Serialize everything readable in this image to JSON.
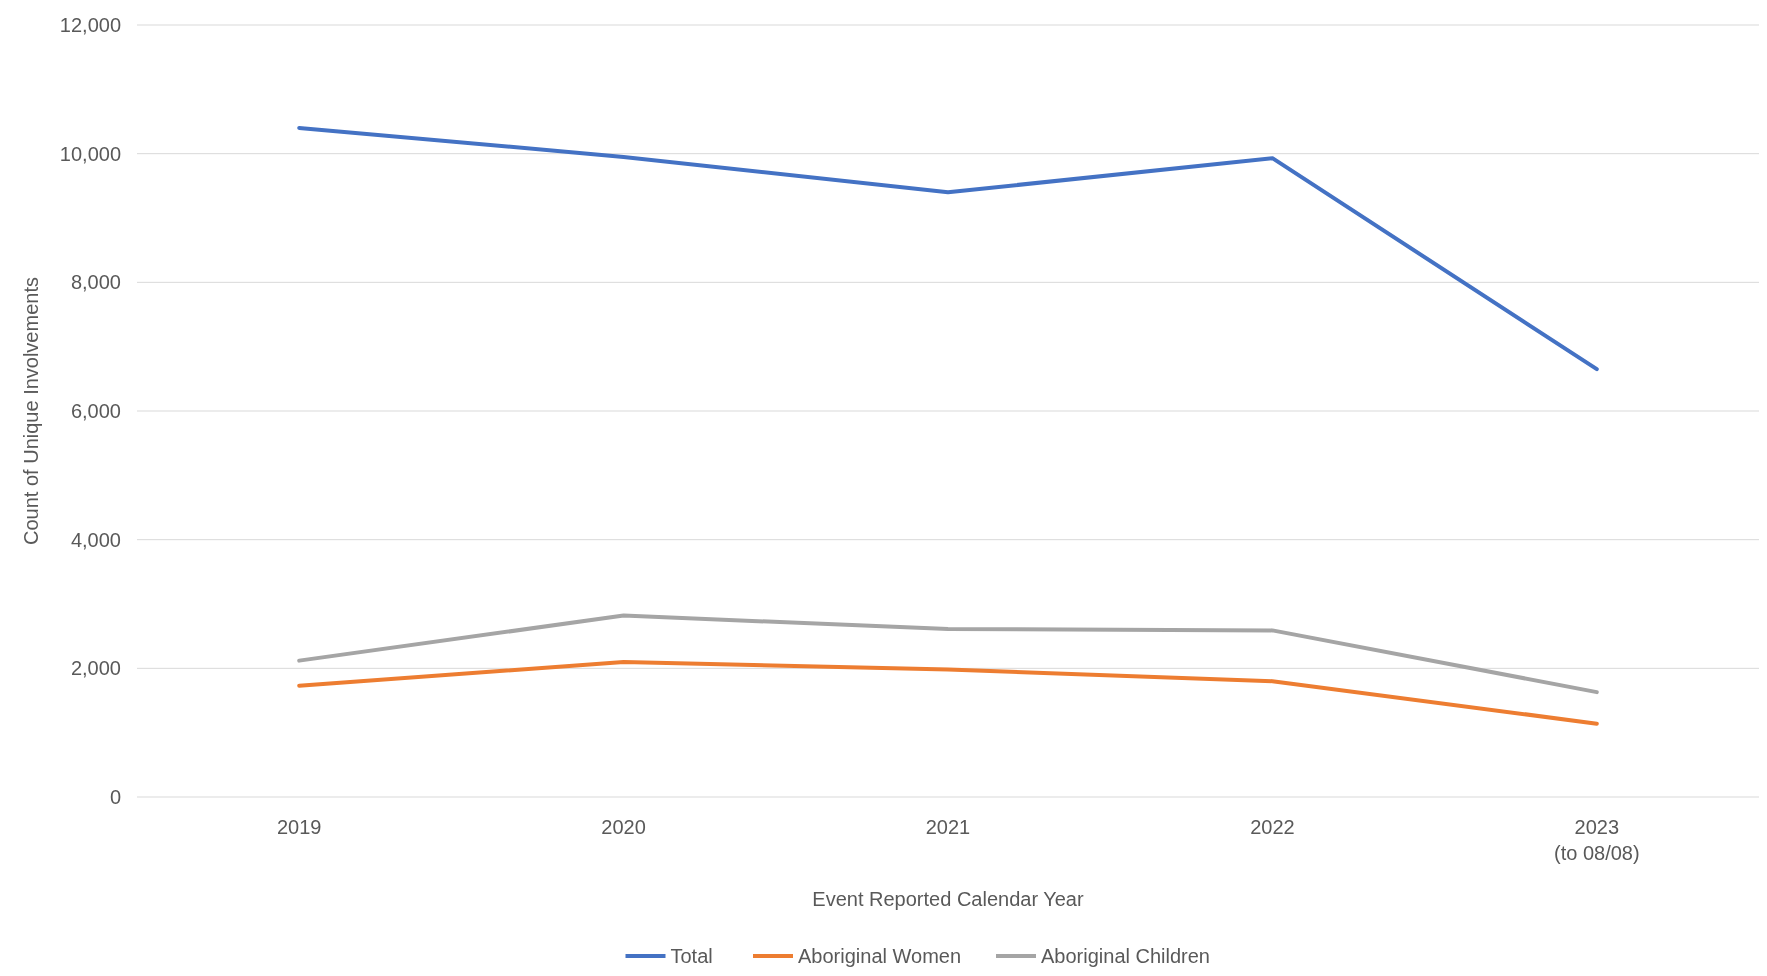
{
  "chart_data": {
    "type": "line",
    "xlabel": "Event Reported Calendar Year",
    "ylabel": "Count of Unique Involvements",
    "categories": [
      "2019",
      "2020",
      "2021",
      "2022",
      "2023\n(to 08/08)"
    ],
    "series": [
      {
        "name": "Total",
        "color": "#4472c4",
        "values": [
          10400,
          9950,
          9400,
          9930,
          6650
        ]
      },
      {
        "name": "Aboriginal Women",
        "color": "#ed7d31",
        "values": [
          1730,
          2100,
          1980,
          1800,
          1140
        ]
      },
      {
        "name": "Aboriginal Children",
        "color": "#a5a5a5",
        "values": [
          2120,
          2820,
          2610,
          2590,
          1630
        ]
      }
    ],
    "ylim": [
      0,
      12000
    ],
    "yticks": [
      {
        "value": 0,
        "label": "0"
      },
      {
        "value": 2000,
        "label": "2,000"
      },
      {
        "value": 4000,
        "label": "4,000"
      },
      {
        "value": 6000,
        "label": "6,000"
      },
      {
        "value": 8000,
        "label": "8,000"
      },
      {
        "value": 10000,
        "label": "10,000"
      },
      {
        "value": 12000,
        "label": "12,000"
      }
    ],
    "grid": "y",
    "legend": "bottom",
    "marker": "none",
    "line_style": "solid"
  }
}
